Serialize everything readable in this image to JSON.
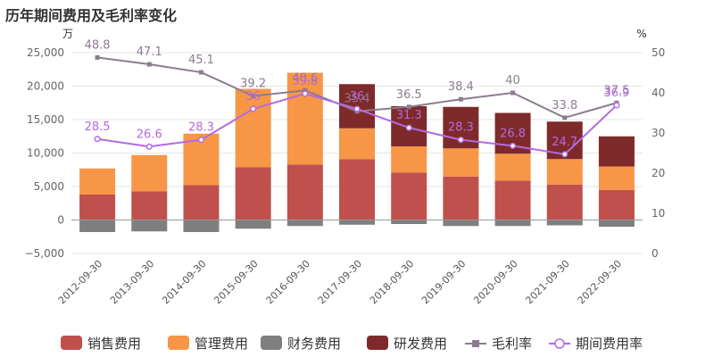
{
  "title": "历年期间费用及毛利率变化",
  "chart_data": {
    "type": "bar",
    "stacked": true,
    "left_unit": "万",
    "right_unit": "%",
    "categories": [
      "2012-09-30",
      "2013-09-30",
      "2014-09-30",
      "2015-09-30",
      "2016-09-30",
      "2017-09-30",
      "2018-09-30",
      "2019-09-30",
      "2020-09-30",
      "2021-09-30",
      "2022-09-30"
    ],
    "ylim": [
      -5000,
      25000
    ],
    "yticks": [
      -5000,
      0,
      5000,
      10000,
      15000,
      20000,
      25000
    ],
    "ytick_labels": [
      "−5,000",
      "0",
      "5,000",
      "10,000",
      "15,000",
      "20,000",
      "25,000"
    ],
    "y2lim": [
      0,
      50
    ],
    "y2ticks": [
      0,
      10,
      20,
      30,
      40,
      50
    ],
    "grid": true,
    "legend_position": "bottom",
    "series": [
      {
        "name": "销售费用",
        "kind": "bar",
        "color": "#c0504d",
        "values": [
          3800,
          4300,
          5200,
          7900,
          8300,
          9100,
          7100,
          6500,
          5900,
          5300,
          4500
        ]
      },
      {
        "name": "管理费用",
        "kind": "bar",
        "color": "#f79646",
        "values": [
          3900,
          5400,
          7700,
          11700,
          13700,
          4600,
          3900,
          4200,
          4000,
          3800,
          3500
        ]
      },
      {
        "name": "财务费用",
        "kind": "bar",
        "color": "#7f7f7f",
        "values": [
          -1800,
          -1700,
          -1800,
          -1300,
          -900,
          -700,
          -600,
          -900,
          -900,
          -800,
          -1000
        ]
      },
      {
        "name": "研发费用",
        "kind": "bar",
        "color": "#7f2a2a",
        "values": [
          0,
          0,
          0,
          0,
          0,
          6600,
          6000,
          6200,
          6100,
          5600,
          4500
        ]
      },
      {
        "name": "毛利率",
        "kind": "line",
        "axis": "right",
        "color": "#8c7b8f",
        "marker": "square",
        "values": [
          48.8,
          47.1,
          45.1,
          39.2,
          40.6,
          35.4,
          36.5,
          38.4,
          40,
          33.8,
          37.5
        ],
        "labels": [
          "48.8",
          "47.1",
          "45.1",
          "39.2",
          "40.6",
          "35.4",
          "36.5",
          "38.4",
          "40",
          "33.8",
          "37.5"
        ]
      },
      {
        "name": "期间费用率",
        "kind": "line",
        "axis": "right",
        "color": "#b36ae2",
        "marker": "circle",
        "values": [
          28.5,
          26.6,
          28.3,
          36,
          39.8,
          36,
          31.3,
          28.3,
          26.8,
          24.7,
          36.9
        ],
        "labels": [
          "28.5",
          "26.6",
          "28.3",
          "36",
          "39.8",
          "36",
          "31.3",
          "28.3",
          "26.8",
          "24.7",
          "36.9"
        ]
      }
    ]
  }
}
